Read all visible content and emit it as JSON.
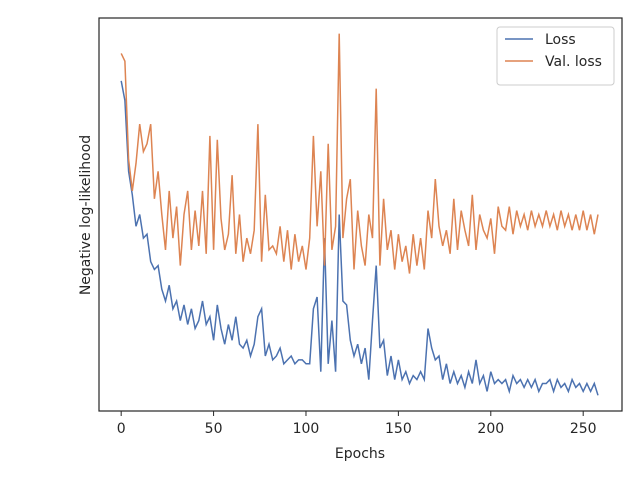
{
  "chart_data": {
    "type": "line",
    "x_label": "Epochs",
    "y_label": "Negative log-likelihood",
    "x": [
      0,
      2,
      4,
      6,
      8,
      10,
      12,
      14,
      16,
      18,
      20,
      22,
      24,
      26,
      28,
      30,
      32,
      34,
      36,
      38,
      40,
      42,
      44,
      46,
      48,
      50,
      52,
      54,
      56,
      58,
      60,
      62,
      64,
      66,
      68,
      70,
      72,
      74,
      76,
      78,
      80,
      82,
      84,
      86,
      88,
      90,
      92,
      94,
      96,
      98,
      100,
      102,
      104,
      106,
      108,
      110,
      112,
      114,
      116,
      118,
      120,
      122,
      124,
      126,
      128,
      130,
      132,
      134,
      136,
      138,
      140,
      142,
      144,
      146,
      148,
      150,
      152,
      154,
      156,
      158,
      160,
      162,
      164,
      166,
      168,
      170,
      172,
      174,
      176,
      178,
      180,
      182,
      184,
      186,
      188,
      190,
      192,
      194,
      196,
      198,
      200,
      202,
      204,
      206,
      208,
      210,
      212,
      214,
      216,
      218,
      220,
      222,
      224,
      226,
      228,
      230,
      232,
      234,
      236,
      238,
      240,
      242,
      244,
      246,
      248,
      250,
      252,
      254,
      256,
      258
    ],
    "series": [
      {
        "name": "Loss",
        "color": "#4c72b0",
        "values": [
          84,
          79,
          61,
          55,
          47,
          50,
          44,
          45,
          38,
          36,
          37,
          31,
          28,
          32,
          26,
          28,
          23,
          27,
          22,
          26,
          21,
          23,
          28,
          22,
          24,
          18,
          27,
          21,
          17,
          22,
          18,
          24,
          17,
          16,
          18,
          14,
          17,
          24,
          26,
          14,
          17,
          13,
          14,
          16,
          12,
          13,
          14,
          12,
          13,
          13,
          12,
          12,
          26,
          29,
          10,
          44,
          12,
          23,
          10,
          50,
          28,
          27,
          18,
          14,
          17,
          12,
          16,
          8,
          23,
          37,
          16,
          18,
          9,
          14,
          8,
          13,
          8,
          10,
          7,
          9,
          8,
          10,
          8,
          21,
          16,
          13,
          14,
          8,
          12,
          7,
          10,
          7,
          9,
          6,
          10,
          7,
          13,
          7,
          9,
          5,
          10,
          7,
          8,
          7,
          8,
          5,
          9,
          7,
          8,
          6,
          8,
          6,
          8,
          5,
          7,
          7,
          8,
          5,
          8,
          6,
          7,
          5,
          8,
          6,
          7,
          5,
          7,
          5,
          7,
          4
        ]
      },
      {
        "name": "Val. loss",
        "color": "#dd8452",
        "values": [
          91,
          89,
          64,
          56,
          63,
          73,
          66,
          68,
          73,
          54,
          61,
          50,
          41,
          56,
          44,
          52,
          37,
          50,
          56,
          41,
          51,
          42,
          56,
          40,
          70,
          41,
          69,
          49,
          41,
          45,
          60,
          40,
          50,
          38,
          44,
          40,
          46,
          73,
          38,
          55,
          41,
          42,
          40,
          47,
          38,
          46,
          36,
          45,
          38,
          42,
          36,
          44,
          70,
          47,
          61,
          37,
          68,
          41,
          47,
          96,
          44,
          54,
          59,
          36,
          51,
          42,
          37,
          50,
          44,
          82,
          37,
          54,
          41,
          46,
          36,
          45,
          38,
          42,
          35,
          45,
          37,
          44,
          36,
          51,
          44,
          59,
          47,
          42,
          46,
          40,
          54,
          41,
          51,
          46,
          42,
          55,
          41,
          50,
          46,
          44,
          49,
          40,
          52,
          47,
          46,
          52,
          45,
          51,
          47,
          50,
          46,
          51,
          47,
          50,
          47,
          51,
          47,
          50,
          46,
          51,
          47,
          50,
          46,
          50,
          46,
          51,
          46,
          50,
          45,
          50
        ]
      }
    ],
    "xlim": [
      -12,
      271
    ],
    "ylim": [
      0,
      100
    ],
    "xticks": [
      0,
      50,
      100,
      150,
      200,
      250
    ],
    "grid": false,
    "legend": "upper right"
  }
}
